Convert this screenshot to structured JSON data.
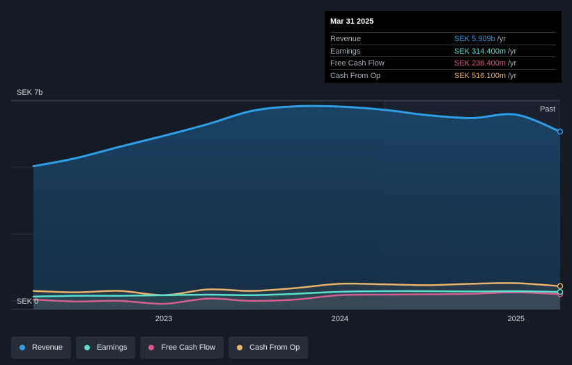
{
  "tooltip": {
    "date": "Mar 31 2025",
    "rows": [
      {
        "label": "Revenue",
        "value": "SEK 5.909b",
        "unit": "/yr",
        "color": "#2e9ee8"
      },
      {
        "label": "Earnings",
        "value": "SEK 314.400m",
        "unit": "/yr",
        "color": "#59e0cf"
      },
      {
        "label": "Free Cash Flow",
        "value": "SEK 238.400m",
        "unit": "/yr",
        "color": "#e0558a"
      },
      {
        "label": "Cash From Op",
        "value": "SEK 516.100m",
        "unit": "/yr",
        "color": "#e8b26a"
      }
    ]
  },
  "legend": [
    {
      "label": "Revenue",
      "color": "#2e9ee8"
    },
    {
      "label": "Earnings",
      "color": "#59e0cf"
    },
    {
      "label": "Free Cash Flow",
      "color": "#e0558a"
    },
    {
      "label": "Cash From Op",
      "color": "#e8b26a"
    }
  ],
  "chart_data": {
    "type": "line",
    "y_top_label": "SEK 7b",
    "y_bottom_label": "SEK 0",
    "past_label": "Past",
    "ylim": [
      0,
      7
    ],
    "xlim": [
      2022.26,
      2025.25
    ],
    "x_ticks": [
      2023,
      2024,
      2025
    ],
    "x_tick_labels": [
      "2023",
      "2024",
      "2025"
    ],
    "forecast_divider_x": 2024.25,
    "series": [
      {
        "name": "Revenue",
        "color": "#2e9ee8",
        "fill": true,
        "x": [
          2022.26,
          2022.5,
          2022.75,
          2023.0,
          2023.25,
          2023.5,
          2023.75,
          2024.0,
          2024.25,
          2024.5,
          2024.75,
          2025.0,
          2025.25
        ],
        "y": [
          4.7,
          4.98,
          5.38,
          5.76,
          6.17,
          6.63,
          6.79,
          6.78,
          6.67,
          6.48,
          6.38,
          6.5,
          5.909
        ]
      },
      {
        "name": "Earnings",
        "color": "#59e0cf",
        "x": [
          2022.26,
          2022.5,
          2022.75,
          2023.0,
          2023.25,
          2023.5,
          2023.75,
          2024.0,
          2024.25,
          2024.5,
          2024.75,
          2025.0,
          2025.25
        ],
        "y": [
          0.15,
          0.18,
          0.18,
          0.2,
          0.22,
          0.2,
          0.25,
          0.32,
          0.34,
          0.34,
          0.33,
          0.34,
          0.3144
        ]
      },
      {
        "name": "Free Cash Flow",
        "color": "#e0558a",
        "x": [
          2022.26,
          2022.5,
          2022.75,
          2023.0,
          2023.25,
          2023.5,
          2023.75,
          2024.0,
          2024.25,
          2024.5,
          2024.75,
          2025.0,
          2025.25
        ],
        "y": [
          0.05,
          -0.02,
          0.0,
          -0.1,
          0.08,
          0.0,
          0.05,
          0.2,
          0.22,
          0.23,
          0.25,
          0.3,
          0.2384
        ]
      },
      {
        "name": "Cash From Op",
        "color": "#e8b26a",
        "x": [
          2022.26,
          2022.5,
          2022.75,
          2023.0,
          2023.25,
          2023.5,
          2023.75,
          2024.0,
          2024.25,
          2024.5,
          2024.75,
          2025.0,
          2025.25
        ],
        "y": [
          0.35,
          0.3,
          0.35,
          0.2,
          0.4,
          0.35,
          0.45,
          0.6,
          0.58,
          0.55,
          0.6,
          0.62,
          0.5161
        ]
      }
    ]
  }
}
